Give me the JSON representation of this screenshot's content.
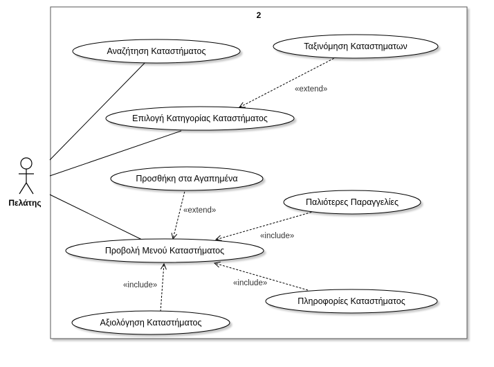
{
  "system": {
    "title": "2"
  },
  "actor": {
    "name": "Πελάτης"
  },
  "use_cases": {
    "search_store": "Αναζήτηση Καταστήματος",
    "sort_stores": "Ταξινόμηση Καταστηματων",
    "choose_category": "Επιλογή Κατηγορίας Καταστήματος",
    "add_favorites": "Προσθήκη στα Αγαπημένα",
    "past_orders": "Παλιότερες Παραγγελίες",
    "view_menu": "Προβολή Μενού Καταστήματος",
    "store_info": "Πληροφορίες Καταστήματος",
    "rate_store": "Αξιολόγηση Καταστήματος"
  },
  "relations": {
    "extend_sort": "«extend»",
    "extend_favorites": "«extend»",
    "include_past_orders": "«include»",
    "include_info": "«include»",
    "include_rate": "«include»"
  }
}
